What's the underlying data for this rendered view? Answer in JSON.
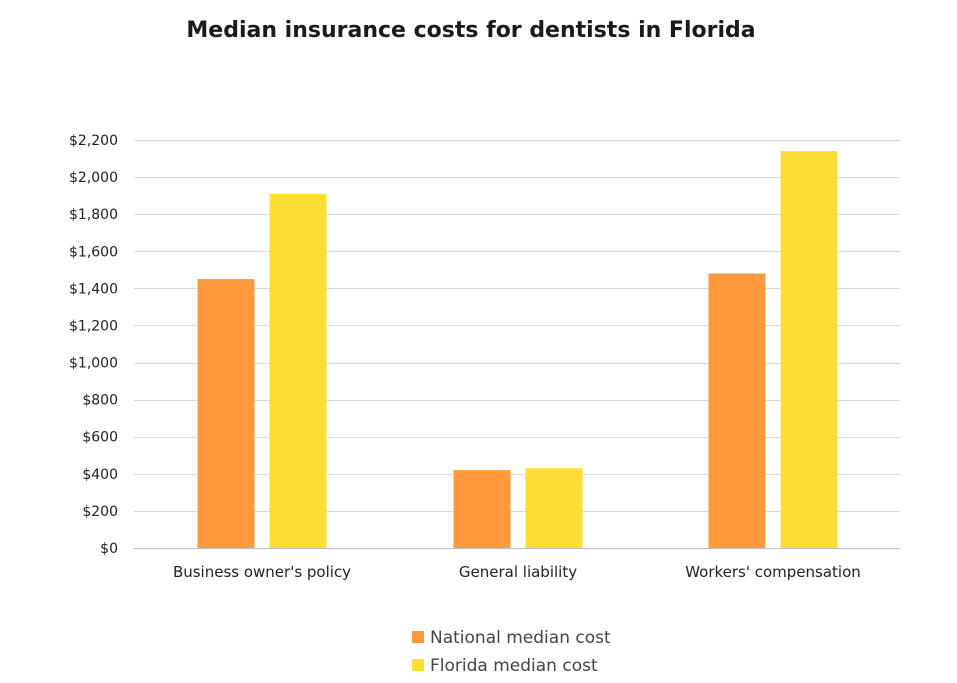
{
  "chart_data": {
    "type": "bar",
    "title": "Median insurance costs for dentists in Florida",
    "xlabel": "",
    "ylabel": "",
    "categories": [
      "Business owner's policy",
      "General liability",
      "Workers' compensation"
    ],
    "series": [
      {
        "name": "National median cost",
        "color": "#FF9A3C",
        "values": [
          1450,
          420,
          1480
        ]
      },
      {
        "name": "Florida median cost",
        "color": "#FFDD33",
        "values": [
          1910,
          430,
          2140
        ]
      }
    ],
    "ylim": [
      0,
      2200
    ],
    "y_ticks": [
      0,
      200,
      400,
      600,
      800,
      1000,
      1200,
      1400,
      1600,
      1800,
      2000,
      2200
    ],
    "y_tick_labels": [
      "$0",
      "$200",
      "$400",
      "$600",
      "$800",
      "$1,000",
      "$1,200",
      "$1,400",
      "$1,600",
      "$1,800",
      "$2,000",
      "$2,200"
    ],
    "grid": true,
    "legend_position": "bottom"
  }
}
